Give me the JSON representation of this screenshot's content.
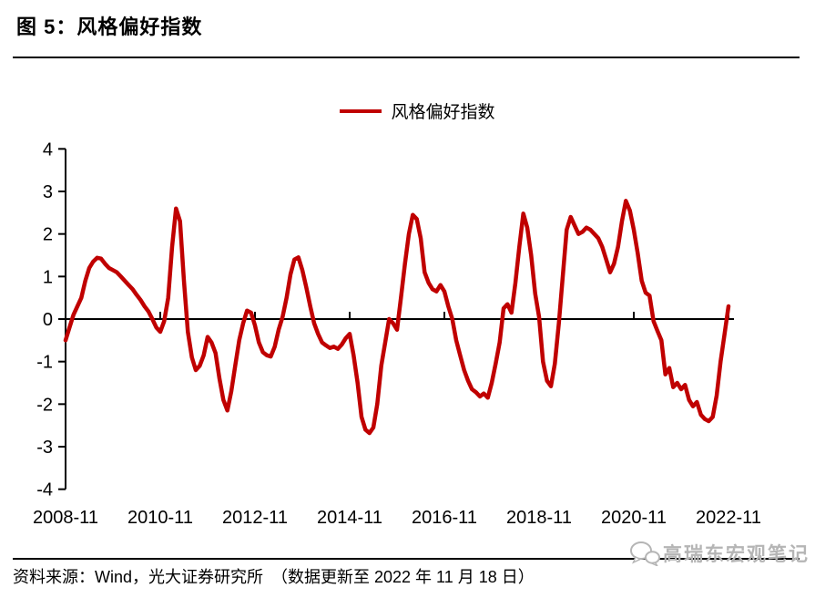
{
  "header": {
    "title": "图 5：风格偏好指数"
  },
  "legend": {
    "label": "风格偏好指数"
  },
  "footer": {
    "source": "资料来源：Wind，光大证券研究所　（数据更新至 2022 年 11 月 18 日）",
    "watermark": "高瑞东宏观笔记"
  },
  "colors": {
    "line": "#C00000",
    "axis": "#000000",
    "watermark": "#B5B5B5"
  },
  "chart_data": {
    "type": "line",
    "title": "风格偏好指数",
    "legend_position": "top-center",
    "grid": false,
    "ylim": [
      -4,
      4
    ],
    "y_ticks": [
      4,
      3,
      2,
      1,
      0,
      -1,
      -2,
      -3,
      -4
    ],
    "x_tick_labels": [
      "2008-11",
      "2010-11",
      "2012-11",
      "2014-11",
      "2016-11",
      "2018-11",
      "2020-11",
      "2022-11"
    ],
    "x_tick_interval_months": 24,
    "line_color": "#C00000",
    "series": [
      {
        "name": "风格偏好指数",
        "start": "2008-11",
        "frequency": "monthly",
        "values": [
          -0.5,
          -0.2,
          0.1,
          0.3,
          0.5,
          0.9,
          1.2,
          1.35,
          1.44,
          1.42,
          1.3,
          1.2,
          1.15,
          1.1,
          1.0,
          0.9,
          0.8,
          0.7,
          0.57,
          0.45,
          0.3,
          0.18,
          0.0,
          -0.2,
          -0.3,
          -0.05,
          0.5,
          1.7,
          2.6,
          2.3,
          0.9,
          -0.3,
          -0.9,
          -1.2,
          -1.1,
          -0.85,
          -0.42,
          -0.55,
          -0.8,
          -1.4,
          -1.9,
          -2.15,
          -1.7,
          -1.1,
          -0.5,
          -0.1,
          0.2,
          0.15,
          -0.15,
          -0.55,
          -0.78,
          -0.85,
          -0.88,
          -0.65,
          -0.25,
          0.05,
          0.5,
          1.05,
          1.4,
          1.45,
          1.15,
          0.75,
          0.3,
          -0.1,
          -0.35,
          -0.55,
          -0.62,
          -0.68,
          -0.65,
          -0.7,
          -0.6,
          -0.45,
          -0.35,
          -0.85,
          -1.5,
          -2.3,
          -2.6,
          -2.68,
          -2.55,
          -2.0,
          -1.1,
          -0.55,
          0.0,
          -0.1,
          -0.25,
          0.5,
          1.3,
          2.0,
          2.45,
          2.35,
          1.9,
          1.1,
          0.85,
          0.7,
          0.65,
          0.8,
          0.65,
          0.3,
          0.0,
          -0.5,
          -0.85,
          -1.2,
          -1.45,
          -1.65,
          -1.72,
          -1.82,
          -1.75,
          -1.85,
          -1.5,
          -1.05,
          -0.55,
          0.25,
          0.35,
          0.15,
          0.85,
          1.7,
          2.48,
          2.15,
          1.5,
          0.6,
          0.05,
          -1.0,
          -1.45,
          -1.58,
          -1.05,
          -0.1,
          1.0,
          2.1,
          2.4,
          2.2,
          2.0,
          2.05,
          2.15,
          2.1,
          2.0,
          1.9,
          1.7,
          1.4,
          1.1,
          1.3,
          1.7,
          2.3,
          2.78,
          2.55,
          2.1,
          1.55,
          0.9,
          0.62,
          0.55,
          -0.05,
          -0.28,
          -0.5,
          -1.3,
          -1.15,
          -1.6,
          -1.5,
          -1.65,
          -1.55,
          -1.9,
          -2.05,
          -1.95,
          -2.25,
          -2.35,
          -2.4,
          -2.3,
          -1.8,
          -1.0,
          -0.35,
          0.3
        ]
      }
    ]
  }
}
